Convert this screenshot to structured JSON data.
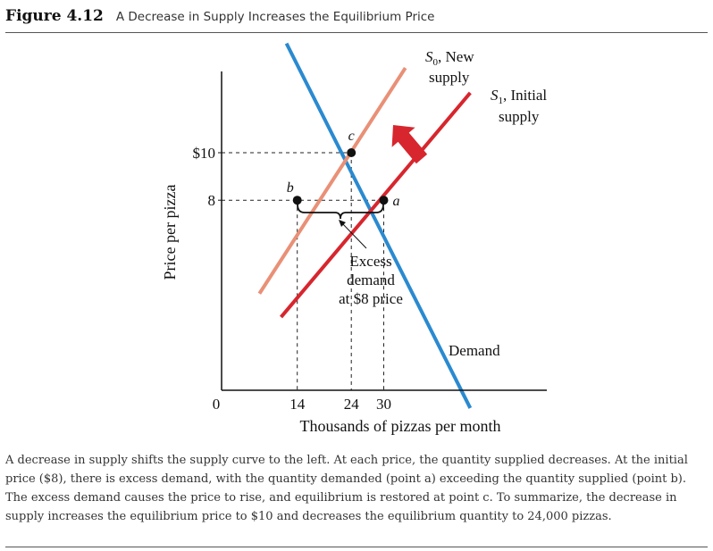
{
  "figure": {
    "label": "Figure 4.12",
    "title": "A Decrease in Supply Increases the Equilibrium Price"
  },
  "chart_data": {
    "type": "line",
    "xlabel": "Thousands of pizzas per month",
    "ylabel": "Price per pizza",
    "x_ticks": [
      {
        "value": 0,
        "label": "0"
      },
      {
        "value": 14,
        "label": "14"
      },
      {
        "value": 24,
        "label": "24"
      },
      {
        "value": 30,
        "label": "30"
      }
    ],
    "y_ticks": [
      {
        "value": 10,
        "label": "$10"
      },
      {
        "value": 8,
        "label": "8"
      }
    ],
    "series": [
      {
        "name": "Demand",
        "label": "Demand",
        "color": "#2a8ad0",
        "points": [
          [
            12,
            14.6
          ],
          [
            46,
            -0.75
          ]
        ]
      },
      {
        "name": "S1, Initial supply",
        "label_line1": "S",
        "label_sub": "1",
        "label_rest": ", Initial",
        "label_line2": "supply",
        "color": "#d7262e",
        "points": [
          [
            11,
            3.08
          ],
          [
            46,
            12.52
          ]
        ]
      },
      {
        "name": "S0, New supply",
        "label_line1": "S",
        "label_sub": "0",
        "label_rest": ", New",
        "label_line2": "supply",
        "color": "#e99077",
        "points": [
          [
            7,
            4.07
          ],
          [
            34,
            13.57
          ]
        ]
      }
    ],
    "points": [
      {
        "label": "c",
        "x": 24,
        "y": 10
      },
      {
        "label": "b",
        "x": 14,
        "y": 8
      },
      {
        "label": "a",
        "x": 30,
        "y": 8
      }
    ],
    "annotation": {
      "lines": [
        "Excess",
        "demand",
        "at $8 price"
      ]
    },
    "arrow_color": "#d7262e"
  },
  "caption": "A decrease in supply shifts the supply curve to the left. At each price, the quantity supplied decreases. At the initial price ($8), there is excess demand, with the quantity demanded (point a) exceeding the quantity supplied (point b). The excess demand causes the price to rise, and equilibrium is restored at point c. To summarize, the decrease in supply increases the equilibrium price to $10 and decreases the equilibrium quantity to 24,000 pizzas."
}
